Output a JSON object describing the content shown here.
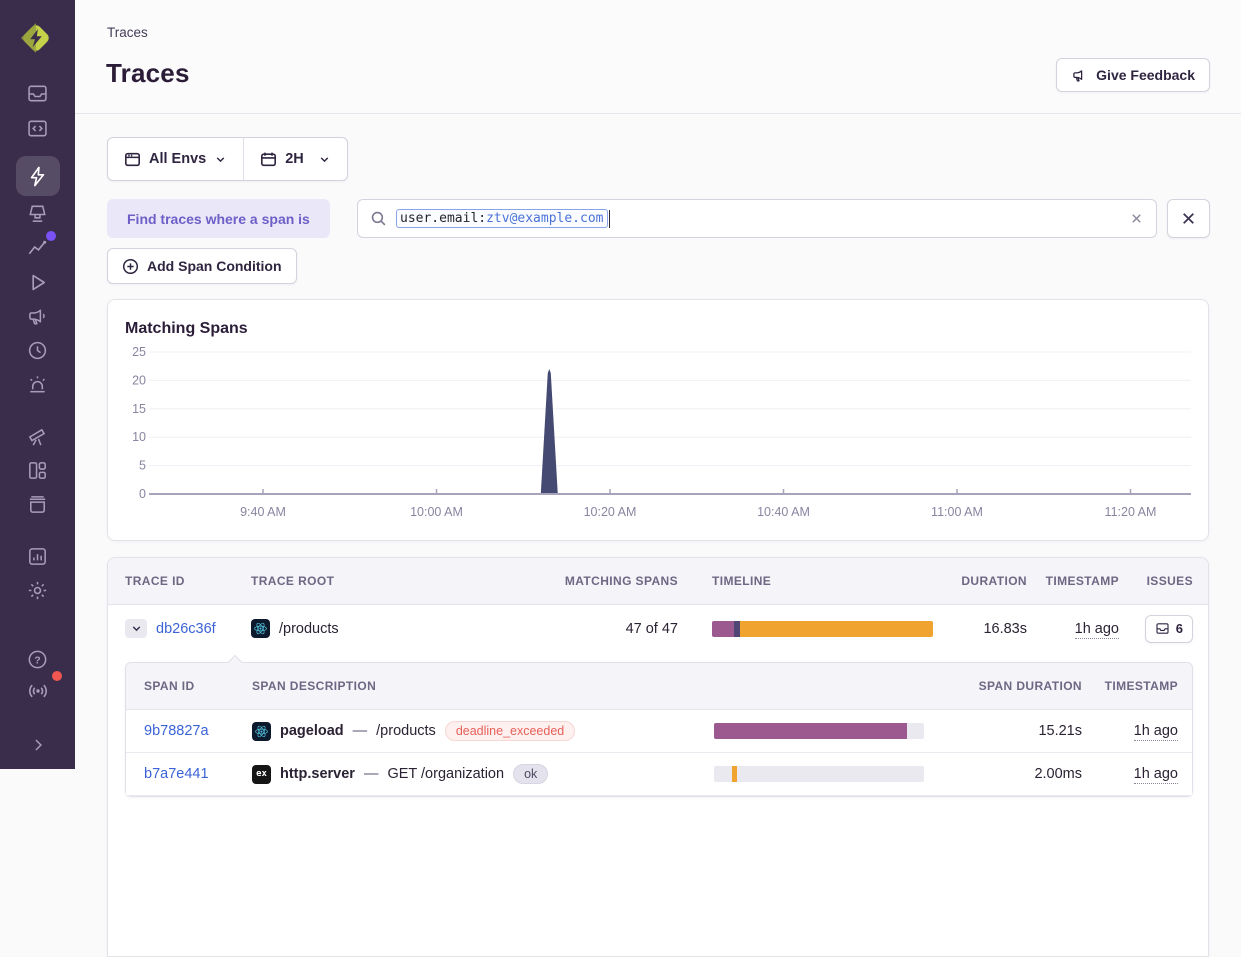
{
  "header": {
    "breadcrumb": "Traces",
    "title": "Traces",
    "feedback_label": "Give Feedback"
  },
  "filters": {
    "env_label": "All Envs",
    "period_label": "2H"
  },
  "search": {
    "condition_label": "Find traces where a span is",
    "token_key": "user.email:",
    "token_value": "ztv@example.com",
    "add_condition_label": "Add Span Condition"
  },
  "chart_data": {
    "type": "area",
    "title": "Matching Spans",
    "x_ticks": [
      "9:40 AM",
      "10:00 AM",
      "10:20 AM",
      "10:40 AM",
      "11:00 AM",
      "11:20 AM"
    ],
    "y_ticks": [
      0,
      5,
      10,
      15,
      20,
      25
    ],
    "ylim": [
      0,
      25
    ],
    "grid": "horizontal-faint",
    "legend": "none",
    "series": [
      {
        "name": "matching spans",
        "baseline": 0,
        "points": [
          {
            "x": "10:13 AM",
            "y": 22
          }
        ]
      }
    ]
  },
  "trace_table": {
    "headers": [
      "TRACE ID",
      "TRACE ROOT",
      "MATCHING SPANS",
      "TIMELINE",
      "DURATION",
      "TIMESTAMP",
      "ISSUES"
    ],
    "rows": [
      {
        "trace_id": "db26c36f",
        "platform_icon": "react-icon",
        "trace_root": "/products",
        "matching_spans": "47 of 47",
        "timeline_segments": [
          {
            "color": "#9c5990",
            "width_pct": 10
          },
          {
            "color": "#4f4676",
            "width_pct": 3
          },
          {
            "color": "#f0a42f",
            "width_pct": 87
          }
        ],
        "duration": "16.83s",
        "timestamp": "1h ago",
        "issues_count": "6"
      }
    ]
  },
  "span_table": {
    "headers": [
      "SPAN ID",
      "SPAN DESCRIPTION",
      "SPAN DURATION",
      "TIMESTAMP"
    ],
    "separator": "—",
    "rows": [
      {
        "span_id": "9b78827a",
        "platform_icon": "react-icon",
        "op": "pageload",
        "description": "/products",
        "status": "deadline_exceeded",
        "status_kind": "error",
        "bar": {
          "color": "#9c5990",
          "start_pct": 0,
          "width_pct": 92
        },
        "duration": "15.21s",
        "timestamp": "1h ago"
      },
      {
        "span_id": "b7a7e441",
        "platform_icon": "express-icon",
        "platform_icon_text": "ex",
        "op": "http.server",
        "description": "GET /organization",
        "status": "ok",
        "status_kind": "ok",
        "bar": {
          "color": "#f0a42f",
          "start_pct": 9,
          "width_pct": 2
        },
        "duration": "2.00ms",
        "timestamp": "1h ago"
      }
    ]
  },
  "sidebar": {
    "icons": [
      "inbox-icon",
      "code-folder-icon",
      "lightning-icon",
      "projector-icon",
      "line-chart-icon",
      "play-icon",
      "megaphone-icon",
      "clock-icon",
      "siren-icon",
      "telescope-icon",
      "dashboard-icon",
      "archive-icon",
      "bar-chart-icon",
      "gear-icon",
      "help-icon",
      "broadcast-icon",
      "chevron-right-icon"
    ],
    "active_icon": "lightning-icon",
    "notifications": [
      {
        "icon": "line-chart-icon",
        "color": "#7a52f4"
      },
      {
        "icon": "broadcast-icon",
        "color": "#f05751"
      }
    ]
  },
  "colors": {
    "sidebar_bg": "#3a2d4c",
    "accent_purple": "#6d5fc7",
    "link_blue": "#3b63d6",
    "spike_fill": "#454a72",
    "timeline_mauve": "#9c5990",
    "timeline_slate": "#4f4676",
    "timeline_amber": "#f0a42f",
    "error_badge": "#e8605a",
    "logo_light": "#c6d14a",
    "logo_dark": "#93a03c"
  }
}
